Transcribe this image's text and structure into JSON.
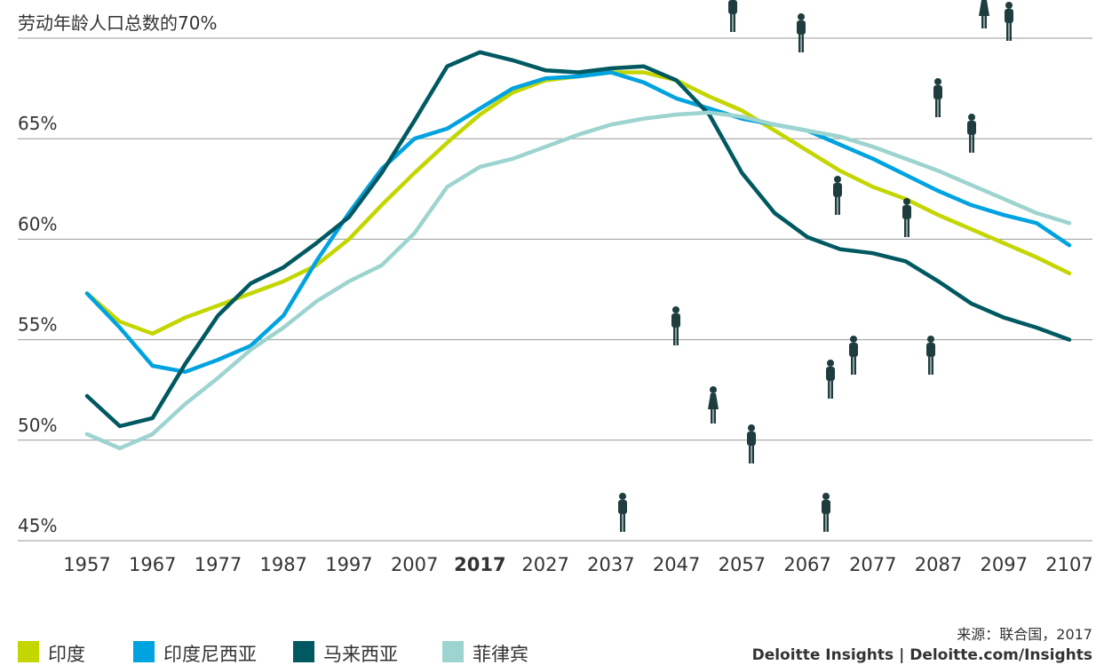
{
  "chart_data": {
    "type": "line",
    "x": [
      1957,
      1962,
      1967,
      1972,
      1977,
      1982,
      1987,
      1992,
      1997,
      2002,
      2007,
      2012,
      2017,
      2022,
      2027,
      2032,
      2037,
      2042,
      2047,
      2052,
      2057,
      2062,
      2067,
      2072,
      2077,
      2082,
      2087,
      2092,
      2097,
      2102,
      2107
    ],
    "xlim": [
      1957,
      2107
    ],
    "xticks": [
      1957,
      1967,
      1977,
      1987,
      1997,
      2007,
      2017,
      2027,
      2037,
      2047,
      2057,
      2067,
      2077,
      2087,
      2097,
      2107
    ],
    "highlight_xtick": 2017,
    "ylim": [
      45,
      70
    ],
    "yticks": [
      {
        "value": 45,
        "label": "45%"
      },
      {
        "value": 50,
        "label": "50%"
      },
      {
        "value": 55,
        "label": "55%"
      },
      {
        "value": 60,
        "label": "60%"
      },
      {
        "value": 65,
        "label": "65%"
      },
      {
        "value": 70,
        "label": "劳动年龄人口总数的70%"
      }
    ],
    "grid": true,
    "legend": "bottom-left",
    "series": [
      {
        "name": "印度",
        "color": "#c4d600",
        "values": [
          57.3,
          55.9,
          55.3,
          56.1,
          56.7,
          57.3,
          57.9,
          58.7,
          60.0,
          61.7,
          63.3,
          64.8,
          66.2,
          67.3,
          67.9,
          68.1,
          68.3,
          68.3,
          67.9,
          67.1,
          66.4,
          65.4,
          64.4,
          63.4,
          62.6,
          62.0,
          61.2,
          60.5,
          59.8,
          59.1,
          58.3
        ]
      },
      {
        "name": "印度尼西亚",
        "color": "#00a3e0",
        "values": [
          57.3,
          55.6,
          53.7,
          53.4,
          54.0,
          54.7,
          56.2,
          58.9,
          61.3,
          63.5,
          65.0,
          65.5,
          66.5,
          67.5,
          68.0,
          68.1,
          68.3,
          67.8,
          67.0,
          66.5,
          66.0,
          65.7,
          65.4,
          64.7,
          64.0,
          63.2,
          62.4,
          61.7,
          61.2,
          60.8,
          59.7
        ]
      },
      {
        "name": "马来西亚",
        "color": "#005961",
        "values": [
          52.2,
          50.7,
          51.1,
          53.8,
          56.2,
          57.8,
          58.6,
          59.8,
          61.1,
          63.3,
          65.9,
          68.6,
          69.3,
          68.9,
          68.4,
          68.3,
          68.5,
          68.6,
          67.9,
          66.2,
          63.3,
          61.3,
          60.1,
          59.5,
          59.3,
          58.9,
          57.9,
          56.8,
          56.1,
          55.6,
          55.0
        ]
      },
      {
        "name": "菲律宾",
        "color": "#9dd4cf",
        "values": [
          50.3,
          49.6,
          50.3,
          51.8,
          53.1,
          54.5,
          55.6,
          56.9,
          57.9,
          58.7,
          60.3,
          62.6,
          63.6,
          64.0,
          64.6,
          65.2,
          65.7,
          66.0,
          66.2,
          66.3,
          66.1,
          65.7,
          65.4,
          65.1,
          64.6,
          64.0,
          63.4,
          62.7,
          62.0,
          61.3,
          60.8
        ]
      }
    ],
    "source": "来源：联合国，2017",
    "credit": "Deloitte Insights | Deloitte.com/Insights"
  }
}
